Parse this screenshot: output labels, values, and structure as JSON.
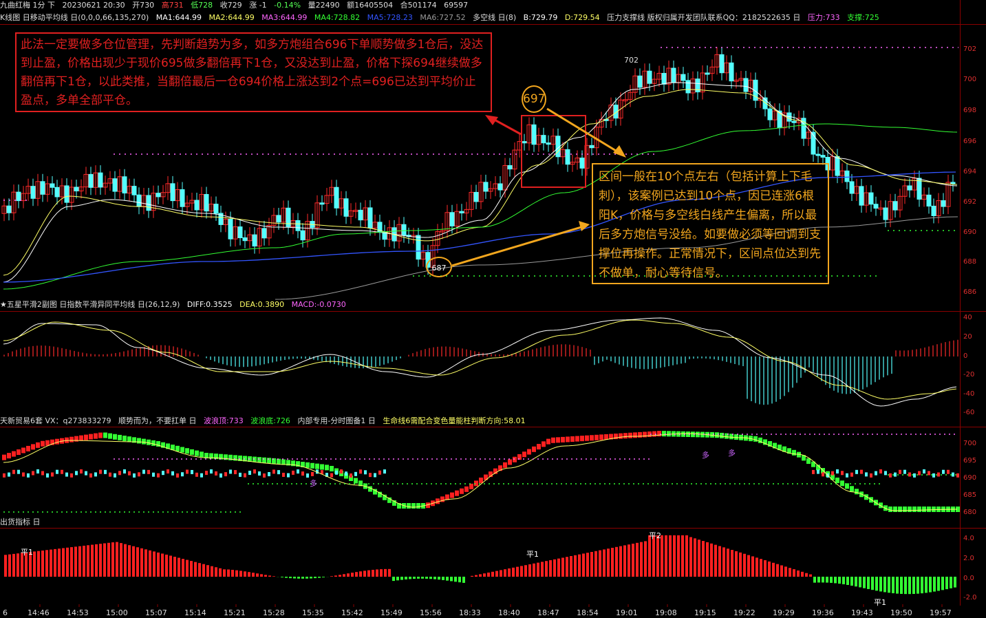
{
  "colors": {
    "up": "#ff2a2a",
    "down": "#54ffff",
    "ma1": "#ffffff",
    "ma2": "#ffff66",
    "ma3": "#ff66ff",
    "ma4": "#33ff33",
    "ma5": "#3355ff",
    "ma6": "#9a9a9a",
    "frame": "#8b0000",
    "callout_red": "#e02020",
    "callout_gold": "#f2a61e"
  },
  "header": {
    "symbol": "九曲红梅 1分 下",
    "datetime": "20230621 20:30",
    "open_label": "开730",
    "high_label": "高731",
    "low_label": "低728",
    "close_label": "收729",
    "change_label": "涨 -1",
    "change_pct": "-0.14%",
    "volume_label": "量22490",
    "amount_label": "额16405504",
    "oi_label": "合501174",
    "oi_extra": "69597"
  },
  "main_legend": {
    "title": "K线图 日移动平均线 日(0,0,0,66,135,270)",
    "ma1": "MA1:644.99",
    "ma2": "MA2:644.99",
    "ma3": "MA3:644.99",
    "ma4": "MA4:728.82",
    "ma5": "MA5:728.23",
    "ma6": "MA6:727.52",
    "extra1": "多空线 日(8)",
    "b": "B:729.79",
    "d": "D:729.54",
    "extra2": "压力支撑线 版权归属开发团队联系QQ：2182522635 日",
    "pressure": "压力:733",
    "support": "支撑:725"
  },
  "main_axis": [
    "702",
    "700",
    "698",
    "696",
    "694",
    "692",
    "690",
    "688",
    "686"
  ],
  "annotations": {
    "peak_label": "702",
    "low_circle": "687",
    "high_circle": "697",
    "red_box_text": "此法一定要做多仓位管理，先判断趋势为多，如多方炮组合696下单顺势做多1仓后，没达到止盈，价格出现少于现价695做多翻倍再下1仓，又没达到止盈，价格下探694继续做多翻倍再下1仓，以此类推，当翻倍最后一仓694价格上涨达到2个点=696已达到平均价止盈点，多单全部平仓。",
    "gold_box_text": "区间一般在10个点左右（包括计算上下毛刺），该案例已达到10个点，因已连涨6根阳K，价格与多空线白线产生偏离，所以最后多方炮信号没给。如要做必须等回调到支撑位再操作。正常情况下，区间点位达到先不做单，耐心等待信号。"
  },
  "macd_legend": {
    "title": "★五星平滑2副图 日指数平滑异同平均线 日(26,12,9)",
    "diff": "DIFF:0.3525",
    "dea": "DEA:0.3890",
    "macd": "MACD:-0.0730"
  },
  "macd_axis": [
    "40",
    "20",
    "0",
    "-20",
    "-40",
    "-60"
  ],
  "wave_legend": {
    "title": "天新贸易6套 VX：q273833279",
    "note": "顺势而为，不要扛单 日",
    "top": "波浪顶:733",
    "bottom": "波浪底:726",
    "extra": "内部专用-分时图备1 日",
    "life": "生命线6需配合变色量能柱判断方向:58.01"
  },
  "wave_axis": [
    "700",
    "695",
    "690",
    "685",
    "680"
  ],
  "wave_marks": [
    "多",
    "多",
    "多"
  ],
  "ship_legend": {
    "title": "出货指标 日"
  },
  "ship_axis": [
    "4.0",
    "2.0",
    "0.0",
    "-2.0"
  ],
  "ship_marks": [
    "平1",
    "平1",
    "平2",
    "平1"
  ],
  "time_axis": [
    "6",
    "14:46",
    "14:53",
    "15:00",
    "15:07",
    "15:14",
    "15:21",
    "15:28",
    "15:35",
    "15:42",
    "15:49",
    "15:56",
    "18:33",
    "18:40",
    "18:47",
    "18:54",
    "19:01",
    "19:08",
    "19:15",
    "19:22",
    "19:29",
    "19:36",
    "19:43",
    "19:50",
    "19:57"
  ]
}
